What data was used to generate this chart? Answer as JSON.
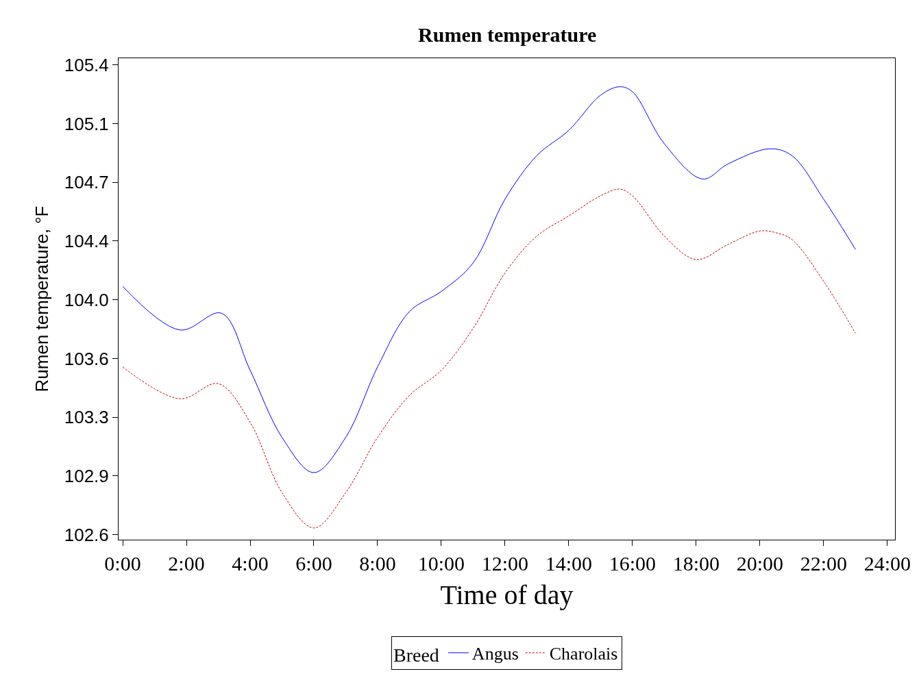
{
  "chart_data": {
    "type": "line",
    "title": "Rumen temperature",
    "xlabel": "Time of day",
    "ylabel": "Rumen temperature, °F",
    "legend_title": "Breed",
    "legend": "bottom",
    "marker": "none",
    "xlim": [
      -0.13,
      24.24
    ],
    "xticks": [
      {
        "value": 0,
        "label": "0:00"
      },
      {
        "value": 2,
        "label": "2:00"
      },
      {
        "value": 4,
        "label": "4:00"
      },
      {
        "value": 6,
        "label": "6:00"
      },
      {
        "value": 8,
        "label": "8:00"
      },
      {
        "value": 10,
        "label": "10:00"
      },
      {
        "value": 12,
        "label": "12:00"
      },
      {
        "value": 14,
        "label": "14:00"
      },
      {
        "value": 16,
        "label": "16:00"
      },
      {
        "value": 18,
        "label": "18:00"
      },
      {
        "value": 20,
        "label": "20:00"
      },
      {
        "value": 22,
        "label": "22:00"
      },
      {
        "value": 24,
        "label": "24:00"
      }
    ],
    "ylim": [
      102.57,
      105.44
    ],
    "yticks": [
      {
        "value": 102.6,
        "label": "102.6"
      },
      {
        "value": 102.95,
        "label": "102.9"
      },
      {
        "value": 103.3,
        "label": "103.3"
      },
      {
        "value": 103.65,
        "label": "103.6"
      },
      {
        "value": 104.0,
        "label": "104.0"
      },
      {
        "value": 104.35,
        "label": "104.4"
      },
      {
        "value": 104.7,
        "label": "104.7"
      },
      {
        "value": 105.05,
        "label": "105.1"
      },
      {
        "value": 105.4,
        "label": "105.4"
      }
    ],
    "series": [
      {
        "name": "Angus",
        "color": "#0000ff",
        "line_style": "solid",
        "x": [
          0,
          1.8,
          3.1,
          4,
          5,
          6,
          7,
          8,
          9,
          10,
          11,
          12,
          13,
          14,
          15,
          15.6,
          16,
          17,
          18.2,
          19,
          20.3,
          21,
          22,
          23
        ],
        "values": [
          104.08,
          103.82,
          103.92,
          103.58,
          103.18,
          102.97,
          103.18,
          103.6,
          103.93,
          104.05,
          104.22,
          104.6,
          104.86,
          105.01,
          105.22,
          105.27,
          105.24,
          104.93,
          104.72,
          104.81,
          104.9,
          104.86,
          104.6,
          104.3
        ]
      },
      {
        "name": "Charolais",
        "color": "#c00000",
        "line_style": "dashed",
        "x": [
          0,
          1.8,
          3,
          4,
          5,
          6,
          7,
          8,
          9,
          10,
          11,
          12,
          13,
          14,
          15,
          15.6,
          16,
          17,
          18,
          19,
          20,
          20.5,
          21,
          22,
          23
        ],
        "values": [
          103.6,
          103.41,
          103.5,
          103.27,
          102.85,
          102.64,
          102.85,
          103.18,
          103.43,
          103.58,
          103.83,
          104.16,
          104.38,
          104.5,
          104.62,
          104.66,
          104.62,
          104.38,
          104.24,
          104.33,
          104.41,
          104.4,
          104.36,
          104.11,
          103.8
        ]
      }
    ]
  }
}
